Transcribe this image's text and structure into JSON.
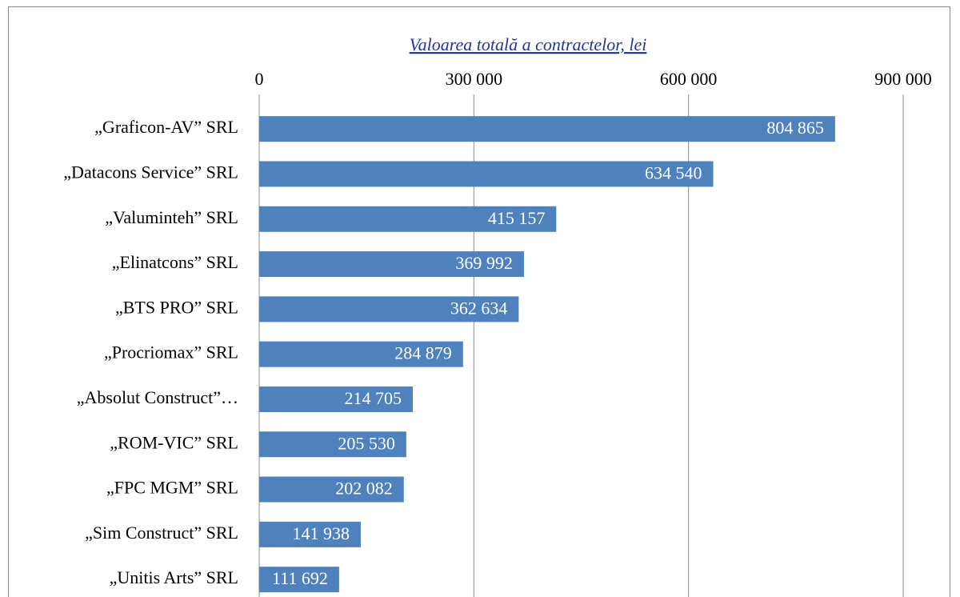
{
  "chart_data": {
    "type": "bar",
    "orientation": "horizontal",
    "title": "Valoarea totală a contractelor, lei",
    "categories": [
      "„Graficon-AV” SRL",
      "„Datacons Service” SRL",
      "„Valuminteh” SRL",
      "„Elinatcons” SRL",
      "„BTS PRO” SRL",
      "„Procriomax” SRL",
      "„Absolut Construct”…",
      "„ROM-VIC” SRL",
      "„FPC MGM” SRL",
      "„Sim Construct” SRL",
      "„Unitis Arts” SRL"
    ],
    "values": [
      804865,
      634540,
      415157,
      369992,
      362634,
      284879,
      214705,
      205530,
      202082,
      141938,
      111692
    ],
    "value_labels": [
      "804 865",
      "634 540",
      "415 157",
      "369 992",
      "362 634",
      "284 879",
      "214 705",
      "205 530",
      "202 082",
      "141 938",
      "111 692"
    ],
    "color": "#4f81bd",
    "xlim": [
      0,
      900000
    ],
    "xticks": [
      0,
      {
        "value": 300000,
        "label": "300 000"
      },
      {
        "value": 600000,
        "label": "600 000"
      },
      {
        "value": 900000,
        "label": "900 000"
      }
    ],
    "grid": true
  }
}
